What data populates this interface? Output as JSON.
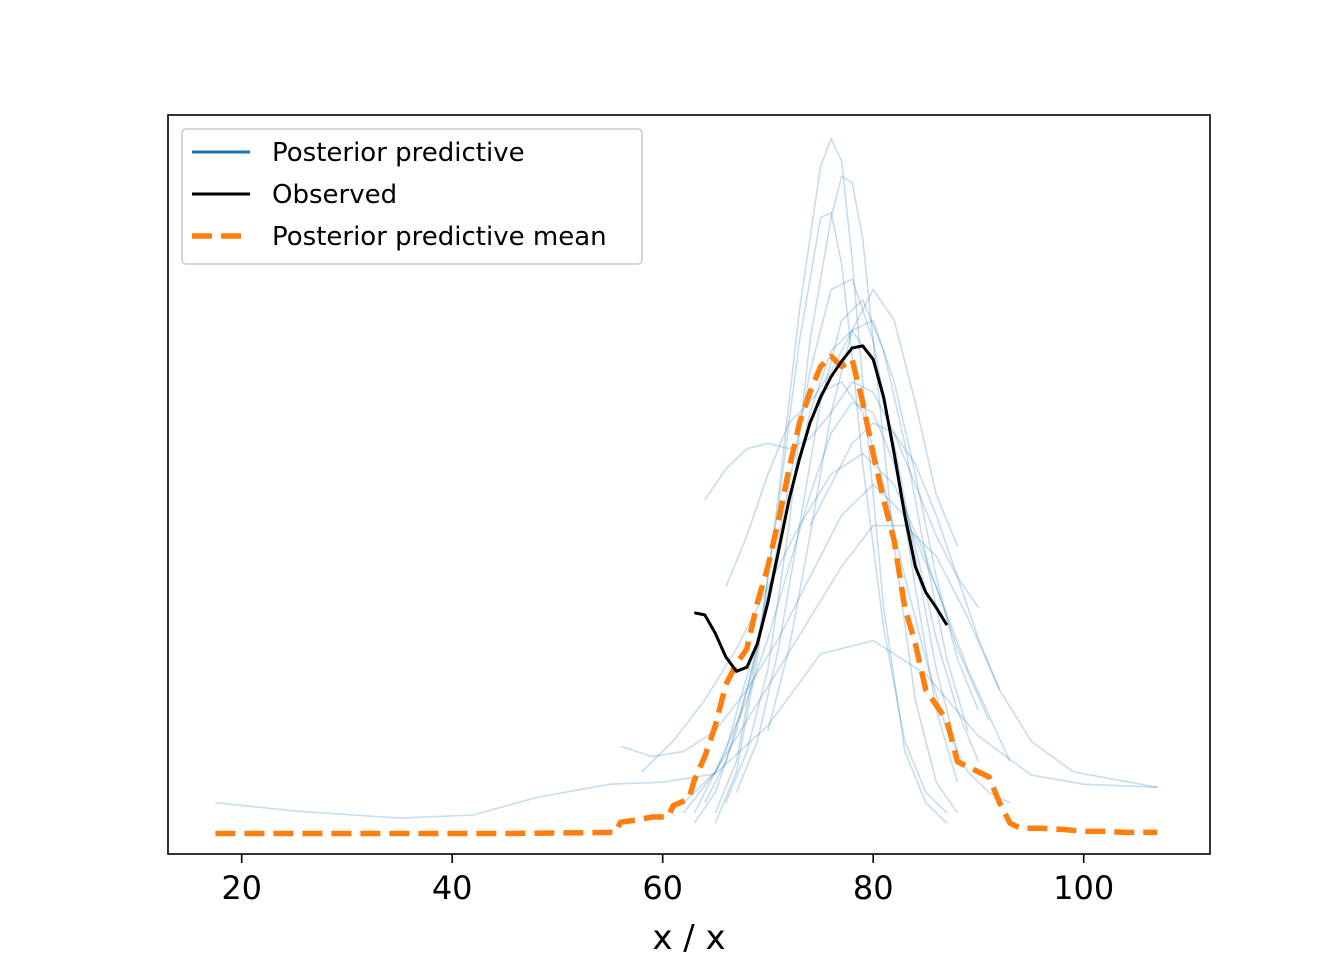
{
  "chart_data": {
    "type": "line",
    "title": "",
    "xlabel": "x / x",
    "ylabel": "",
    "xlim": [
      13,
      112
    ],
    "ylim": [
      -0.002,
      0.07
    ],
    "x_ticks": [
      20,
      40,
      60,
      80,
      100
    ],
    "x_tick_labels": [
      "20",
      "40",
      "60",
      "80",
      "100"
    ],
    "y_ticks_shown": false,
    "grid": false,
    "legend_position": "upper left",
    "legend": [
      {
        "label": "Posterior predictive",
        "style": "solid-thin",
        "color": "#1f77b4"
      },
      {
        "label": "Observed",
        "style": "solid",
        "color": "#000000"
      },
      {
        "label": "Posterior predictive mean",
        "style": "dashed",
        "color": "#ff7f0e"
      }
    ],
    "colors": {
      "posterior_predictive": "#1f77b4",
      "observed": "#000000",
      "mean": "#ff7f0e"
    },
    "series": [
      {
        "name": "Observed",
        "x": [
          63,
          64,
          65,
          66,
          67,
          68,
          69,
          70,
          71,
          72,
          73,
          74,
          75,
          76,
          77,
          78,
          79,
          80,
          81,
          82,
          83,
          84,
          85,
          86,
          87
        ],
        "y": [
          0.0215,
          0.0213,
          0.0195,
          0.0172,
          0.0158,
          0.0162,
          0.0185,
          0.0225,
          0.0275,
          0.0325,
          0.0365,
          0.04,
          0.0425,
          0.0445,
          0.046,
          0.0473,
          0.0475,
          0.0462,
          0.0425,
          0.037,
          0.031,
          0.026,
          0.0235,
          0.022,
          0.0203
        ]
      },
      {
        "name": "Posterior predictive mean",
        "x": [
          17.5,
          25,
          35,
          45,
          55.5,
          56,
          57.5,
          59,
          60.5,
          61,
          62.5,
          63,
          64,
          65,
          66,
          67,
          68,
          69,
          70,
          71,
          72,
          73,
          74,
          75,
          76,
          77,
          78,
          79,
          80,
          81,
          82,
          83,
          84,
          85,
          86,
          87,
          88,
          89,
          90,
          91,
          92,
          93,
          94,
          96,
          98,
          100,
          102,
          104,
          107
        ],
        "y": [
          0.0,
          0.0,
          0.0,
          0.0,
          0.0001,
          0.0011,
          0.0013,
          0.0016,
          0.0016,
          0.0027,
          0.0034,
          0.0052,
          0.0075,
          0.0105,
          0.0145,
          0.0165,
          0.018,
          0.0225,
          0.026,
          0.0305,
          0.0355,
          0.04,
          0.043,
          0.0455,
          0.0465,
          0.0455,
          0.0462,
          0.042,
          0.037,
          0.0325,
          0.0285,
          0.022,
          0.0185,
          0.014,
          0.0125,
          0.011,
          0.007,
          0.0065,
          0.006,
          0.0055,
          0.003,
          0.001,
          0.0005,
          0.0005,
          0.0004,
          0.0002,
          0.0002,
          0.0001,
          0.0001
        ]
      },
      {
        "name": "Posterior predictive",
        "draws": [
          {
            "x": [
              17.5,
              25,
              35,
              42,
              48,
              55,
              60,
              65,
              70,
              75,
              80,
              85,
              90,
              95,
              100,
              107
            ],
            "y": [
              0.003,
              0.0022,
              0.0015,
              0.0018,
              0.0035,
              0.0048,
              0.005,
              0.0058,
              0.0105,
              0.0175,
              0.0188,
              0.0155,
              0.0095,
              0.0057,
              0.0048,
              0.0045
            ]
          },
          {
            "x": [
              65,
              67,
              69,
              71,
              73,
              75,
              76,
              77,
              78,
              79,
              81,
              83,
              85,
              87
            ],
            "y": [
              0.001,
              0.006,
              0.017,
              0.033,
              0.051,
              0.065,
              0.0677,
              0.0655,
              0.056,
              0.044,
              0.022,
              0.008,
              0.003,
              0.001
            ]
          },
          {
            "x": [
              65,
              67,
              69,
              71,
              73,
              75,
              76,
              77,
              78,
              79,
              81,
              83,
              85,
              87
            ],
            "y": [
              0.002,
              0.007,
              0.018,
              0.032,
              0.048,
              0.06,
              0.0605,
              0.0555,
              0.0465,
              0.036,
              0.02,
              0.009,
              0.004,
              0.002
            ]
          },
          {
            "x": [
              66,
              68,
              70,
              72,
              74,
              76,
              77,
              78,
              79,
              80,
              82,
              84,
              86,
              88
            ],
            "y": [
              0.003,
              0.008,
              0.016,
              0.03,
              0.048,
              0.06,
              0.064,
              0.0634,
              0.058,
              0.048,
              0.028,
              0.013,
              0.005,
              0.002
            ]
          },
          {
            "x": [
              64,
              66,
              68,
              70,
              72,
              74,
              76,
              78,
              80,
              82,
              84,
              86,
              88
            ],
            "y": [
              0.003,
              0.007,
              0.014,
              0.023,
              0.034,
              0.045,
              0.053,
              0.054,
              0.048,
              0.037,
              0.024,
              0.012,
              0.005
            ]
          },
          {
            "x": [
              62,
              65,
              68,
              70,
              72,
              74,
              76,
              78,
              80,
              82,
              84,
              86,
              88,
              90
            ],
            "y": [
              0.002,
              0.006,
              0.013,
              0.019,
              0.026,
              0.033,
              0.039,
              0.042,
              0.041,
              0.036,
              0.028,
              0.019,
              0.012,
              0.007
            ]
          },
          {
            "x": [
              58,
              61,
              64,
              67,
              70,
              73,
              76,
              79,
              82,
              85,
              88,
              91
            ],
            "y": [
              0.006,
              0.009,
              0.013,
              0.018,
              0.024,
              0.03,
              0.035,
              0.037,
              0.034,
              0.027,
              0.018,
              0.011
            ]
          },
          {
            "x": [
              56,
              59,
              62,
              65,
              68,
              71,
              74,
              77,
              80,
              83,
              86,
              89,
              93
            ],
            "y": [
              0.0085,
              0.0075,
              0.008,
              0.01,
              0.014,
              0.019,
              0.025,
              0.031,
              0.034,
              0.031,
              0.024,
              0.016,
              0.007
            ]
          },
          {
            "x": [
              63,
              66,
              69,
              72,
              74,
              76,
              78,
              80,
              82,
              84,
              86,
              88
            ],
            "y": [
              0.002,
              0.008,
              0.019,
              0.032,
              0.041,
              0.047,
              0.049,
              0.046,
              0.038,
              0.027,
              0.016,
              0.008
            ]
          },
          {
            "x": [
              67,
              69,
              71,
              73,
              75,
              77,
              79,
              81,
              83,
              85,
              87,
              89
            ],
            "y": [
              0.004,
              0.009,
              0.018,
              0.03,
              0.042,
              0.05,
              0.052,
              0.047,
              0.038,
              0.027,
              0.017,
              0.01
            ]
          },
          {
            "x": [
              62,
              65,
              68,
              71,
              74,
              77,
              80,
              83,
              86,
              89,
              92,
              95,
              99,
              107
            ],
            "y": [
              0.003,
              0.006,
              0.011,
              0.016,
              0.021,
              0.026,
              0.03,
              0.03,
              0.027,
              0.021,
              0.014,
              0.009,
              0.006,
              0.0045
            ]
          },
          {
            "x": [
              64,
              66,
              68,
              70,
              72,
              74,
              76,
              78,
              80,
              82,
              84,
              86,
              88,
              90
            ],
            "y": [
              0.0325,
              0.0355,
              0.0375,
              0.038,
              0.0375,
              0.0385,
              0.041,
              0.044,
              0.043,
              0.039,
              0.034,
              0.029,
              0.025,
              0.022
            ]
          },
          {
            "x": [
              66,
              68,
              70,
              72,
              74,
              76,
              78,
              80,
              82,
              84,
              86,
              88
            ],
            "y": [
              0.024,
              0.029,
              0.035,
              0.04,
              0.042,
              0.045,
              0.049,
              0.053,
              0.05,
              0.042,
              0.033,
              0.028
            ]
          },
          {
            "x": [
              70,
              72,
              74,
              76,
              78,
              80,
              82,
              84,
              86,
              88,
              90
            ],
            "y": [
              0.01,
              0.018,
              0.029,
              0.041,
              0.049,
              0.05,
              0.044,
              0.035,
              0.025,
              0.017,
              0.012
            ]
          },
          {
            "x": [
              74,
              76,
              78,
              80,
              82,
              84,
              86,
              88,
              90,
              92
            ],
            "y": [
              0.03,
              0.034,
              0.038,
              0.04,
              0.039,
              0.036,
              0.031,
              0.025,
              0.019,
              0.014
            ]
          },
          {
            "x": [
              63,
              65,
              67,
              69,
              71,
              73,
              75,
              77,
              79,
              81,
              83,
              85,
              87,
              89,
              91,
              93
            ],
            "y": [
              0.001,
              0.004,
              0.01,
              0.018,
              0.028,
              0.037,
              0.043,
              0.044,
              0.041,
              0.034,
              0.025,
              0.017,
              0.01,
              0.006,
              0.004,
              0.003
            ]
          }
        ]
      }
    ]
  }
}
